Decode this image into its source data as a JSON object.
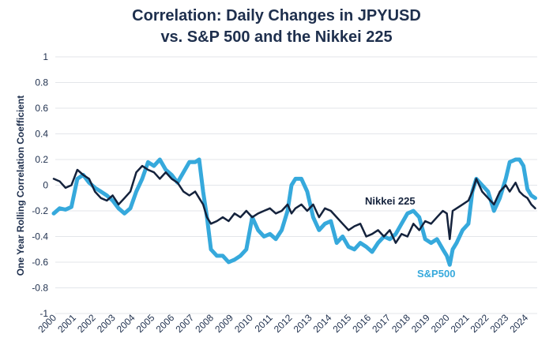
{
  "chart_data": {
    "type": "line",
    "title_lines": [
      "Correlation: Daily Changes in JPYUSD",
      "vs. S&P 500 and the Nikkei 225"
    ],
    "ylabel": "One Year Rolling Correlation Coefficient",
    "xlabel": "",
    "ylim": [
      -1,
      1
    ],
    "y_ticks": [
      "1",
      "0.8",
      "0.6",
      "0.4",
      "0.2",
      "0",
      "-0.2",
      "-0.4",
      "-0.6",
      "-0.8",
      "-1"
    ],
    "y_tick_values": [
      1,
      0.8,
      0.6,
      0.4,
      0.2,
      0,
      -0.2,
      -0.4,
      -0.6,
      -0.8,
      -1
    ],
    "xlim": [
      2000,
      2024.6
    ],
    "x_ticks": [
      "2000",
      "2001",
      "2002",
      "2003",
      "2004",
      "2005",
      "2006",
      "2007",
      "2008",
      "2009",
      "2010",
      "2011",
      "2012",
      "2013",
      "2014",
      "2015",
      "2016",
      "2017",
      "2018",
      "2019",
      "2020",
      "2021",
      "2022",
      "2023",
      "2024"
    ],
    "grid": "horizontal",
    "series": [
      {
        "name": "S&P500",
        "label": "S&P500",
        "color": "#36a9dc",
        "x": [
          2000,
          2000.3,
          2000.6,
          2000.9,
          2001.2,
          2001.5,
          2001.8,
          2002.1,
          2002.4,
          2002.7,
          2003.0,
          2003.3,
          2003.6,
          2003.9,
          2004.2,
          2004.5,
          2004.8,
          2005.1,
          2005.4,
          2005.7,
          2006.0,
          2006.3,
          2006.6,
          2006.9,
          2007.2,
          2007.4,
          2007.6,
          2007.8,
          2008.0,
          2008.3,
          2008.6,
          2008.9,
          2009.2,
          2009.5,
          2009.8,
          2010.1,
          2010.4,
          2010.7,
          2011.0,
          2011.3,
          2011.6,
          2011.9,
          2012.1,
          2012.3,
          2012.6,
          2012.9,
          2013.2,
          2013.5,
          2013.8,
          2014.1,
          2014.4,
          2014.7,
          2015.0,
          2015.3,
          2015.6,
          2015.9,
          2016.2,
          2016.5,
          2016.8,
          2017.1,
          2017.4,
          2017.7,
          2018.0,
          2018.3,
          2018.6,
          2018.9,
          2019.2,
          2019.5,
          2019.8,
          2020.0,
          2020.15,
          2020.3,
          2020.5,
          2020.8,
          2021.1,
          2021.3,
          2021.5,
          2021.8,
          2022.1,
          2022.4,
          2022.7,
          2023.0,
          2023.2,
          2023.5,
          2023.7,
          2023.9,
          2024.1,
          2024.3,
          2024.5
        ],
        "values": [
          -0.22,
          -0.18,
          -0.19,
          -0.17,
          0.05,
          0.08,
          0.02,
          -0.02,
          -0.05,
          -0.08,
          -0.12,
          -0.18,
          -0.22,
          -0.18,
          -0.05,
          0.05,
          0.18,
          0.15,
          0.2,
          0.12,
          0.08,
          0.02,
          0.1,
          0.18,
          0.18,
          0.2,
          -0.05,
          -0.25,
          -0.5,
          -0.55,
          -0.55,
          -0.6,
          -0.58,
          -0.55,
          -0.5,
          -0.25,
          -0.35,
          -0.4,
          -0.38,
          -0.42,
          -0.35,
          -0.2,
          0.0,
          0.05,
          0.05,
          -0.05,
          -0.25,
          -0.35,
          -0.3,
          -0.28,
          -0.45,
          -0.4,
          -0.48,
          -0.5,
          -0.45,
          -0.48,
          -0.52,
          -0.45,
          -0.4,
          -0.42,
          -0.38,
          -0.3,
          -0.22,
          -0.2,
          -0.25,
          -0.42,
          -0.45,
          -0.42,
          -0.5,
          -0.55,
          -0.62,
          -0.5,
          -0.45,
          -0.35,
          -0.3,
          -0.05,
          0.05,
          0.0,
          -0.05,
          -0.2,
          -0.1,
          0.05,
          0.18,
          0.2,
          0.2,
          0.15,
          -0.03,
          -0.08,
          -0.1
        ]
      },
      {
        "name": "Nikkei 225",
        "label": "Nikkei 225",
        "color": "#14223c",
        "x": [
          2000,
          2000.3,
          2000.6,
          2000.9,
          2001.2,
          2001.5,
          2001.8,
          2002.1,
          2002.4,
          2002.7,
          2003.0,
          2003.3,
          2003.6,
          2003.9,
          2004.2,
          2004.5,
          2004.8,
          2005.1,
          2005.4,
          2005.7,
          2006.0,
          2006.3,
          2006.6,
          2006.9,
          2007.2,
          2007.4,
          2007.6,
          2007.8,
          2008.0,
          2008.3,
          2008.6,
          2008.9,
          2009.2,
          2009.5,
          2009.8,
          2010.1,
          2010.4,
          2010.7,
          2011.0,
          2011.3,
          2011.6,
          2011.9,
          2012.1,
          2012.3,
          2012.6,
          2012.9,
          2013.2,
          2013.5,
          2013.8,
          2014.1,
          2014.4,
          2014.7,
          2015.0,
          2015.3,
          2015.6,
          2015.9,
          2016.2,
          2016.5,
          2016.8,
          2017.1,
          2017.4,
          2017.7,
          2018.0,
          2018.3,
          2018.6,
          2018.9,
          2019.2,
          2019.5,
          2019.8,
          2020.0,
          2020.15,
          2020.3,
          2020.5,
          2020.8,
          2021.1,
          2021.3,
          2021.5,
          2021.8,
          2022.1,
          2022.4,
          2022.7,
          2023.0,
          2023.2,
          2023.5,
          2023.7,
          2023.9,
          2024.1,
          2024.3,
          2024.5
        ],
        "values": [
          0.05,
          0.03,
          -0.02,
          0.0,
          0.12,
          0.08,
          0.05,
          -0.05,
          -0.1,
          -0.12,
          -0.08,
          -0.15,
          -0.1,
          -0.05,
          0.1,
          0.15,
          0.12,
          0.1,
          0.05,
          0.1,
          0.05,
          0.02,
          -0.05,
          -0.08,
          -0.05,
          -0.1,
          -0.15,
          -0.25,
          -0.3,
          -0.28,
          -0.25,
          -0.28,
          -0.22,
          -0.25,
          -0.2,
          -0.25,
          -0.22,
          -0.2,
          -0.18,
          -0.22,
          -0.2,
          -0.15,
          -0.22,
          -0.18,
          -0.15,
          -0.2,
          -0.15,
          -0.25,
          -0.18,
          -0.2,
          -0.25,
          -0.3,
          -0.35,
          -0.32,
          -0.3,
          -0.4,
          -0.38,
          -0.35,
          -0.4,
          -0.35,
          -0.45,
          -0.38,
          -0.4,
          -0.3,
          -0.35,
          -0.28,
          -0.3,
          -0.25,
          -0.2,
          -0.22,
          -0.42,
          -0.2,
          -0.18,
          -0.15,
          -0.12,
          -0.05,
          0.05,
          -0.05,
          -0.1,
          -0.15,
          -0.05,
          0.0,
          -0.05,
          0.02,
          -0.05,
          -0.08,
          -0.1,
          -0.15,
          -0.18
        ]
      }
    ]
  }
}
